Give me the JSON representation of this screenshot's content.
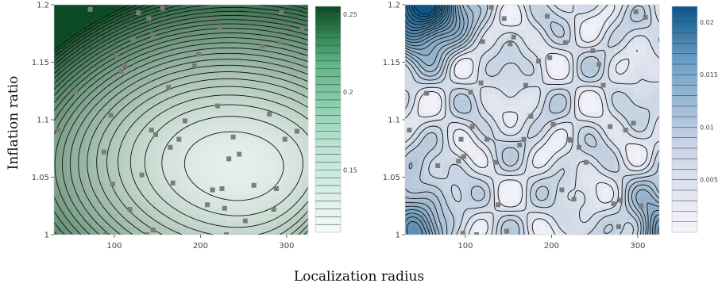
{
  "figure": {
    "xlabel": "Localization radius",
    "ylabel": "Inflation ratio"
  },
  "chart_data": [
    {
      "type": "heatmap",
      "subtype": "contour",
      "title": "",
      "xlabel": "Localization radius",
      "ylabel": "Inflation ratio",
      "xlim": [
        30,
        325
      ],
      "ylim": [
        1.0,
        1.2
      ],
      "xticks": [
        100,
        200,
        300
      ],
      "yticks": [
        1.0,
        1.05,
        1.1,
        1.15,
        1.2
      ],
      "xtick_labels": [
        "100",
        "200",
        "300"
      ],
      "ytick_labels": [
        "1",
        "1.05",
        "1.1",
        "1.15",
        "1.2"
      ],
      "colorscale": "greens",
      "color_low": "#f3faf8",
      "color_high": "#0b4a22",
      "colorbar": {
        "range": [
          0.11,
          0.255
        ],
        "ticks": [
          0.15,
          0.2,
          0.25
        ],
        "tick_labels": [
          "0.15",
          "0.2",
          "0.25"
        ],
        "levels": [
          0.115,
          0.12,
          0.125,
          0.13,
          0.135,
          0.14,
          0.145,
          0.15,
          0.155,
          0.16,
          0.165,
          0.17,
          0.175,
          0.18,
          0.185,
          0.19,
          0.195,
          0.2,
          0.205,
          0.21,
          0.215,
          0.22,
          0.225,
          0.23,
          0.235,
          0.24,
          0.245,
          0.25
        ]
      },
      "surface_description": "minimum near x=240, y=1.06; increases toward low radius and high inflation; maximum at top-left corner",
      "sample_points": [
        [
          35,
          1.091
        ],
        [
          55,
          1.124
        ],
        [
          72,
          1.196
        ],
        [
          88,
          1.072
        ],
        [
          90,
          1.0
        ],
        [
          96,
          1.104
        ],
        [
          98,
          1.044
        ],
        [
          102,
          1.156
        ],
        [
          108,
          1.142
        ],
        [
          112,
          1.147
        ],
        [
          118,
          1.022
        ],
        [
          122,
          1.169
        ],
        [
          128,
          1.193
        ],
        [
          132,
          1.052
        ],
        [
          138,
          1.0
        ],
        [
          140,
          1.188
        ],
        [
          143,
          1.091
        ],
        [
          145,
          1.174
        ],
        [
          145,
          1.004
        ],
        [
          148,
          1.087
        ],
        [
          156,
          1.197
        ],
        [
          163,
          1.128
        ],
        [
          165,
          1.076
        ],
        [
          168,
          1.045
        ],
        [
          175,
          1.083
        ],
        [
          182,
          1.099
        ],
        [
          193,
          1.147
        ],
        [
          198,
          1.157
        ],
        [
          208,
          1.026
        ],
        [
          214,
          1.039
        ],
        [
          220,
          1.112
        ],
        [
          222,
          1.181
        ],
        [
          225,
          1.04
        ],
        [
          228,
          1.023
        ],
        [
          230,
          1.0
        ],
        [
          233,
          1.066
        ],
        [
          238,
          1.085
        ],
        [
          245,
          1.07
        ],
        [
          252,
          1.012
        ],
        [
          262,
          1.043
        ],
        [
          272,
          1.164
        ],
        [
          280,
          1.105
        ],
        [
          285,
          1.022
        ],
        [
          288,
          1.04
        ],
        [
          292,
          1.167
        ],
        [
          294,
          1.193
        ],
        [
          298,
          1.083
        ],
        [
          312,
          1.09
        ],
        [
          318,
          1.179
        ]
      ]
    },
    {
      "type": "heatmap",
      "subtype": "contour",
      "title": "",
      "xlabel": "Localization radius",
      "ylabel": "Inflation ratio",
      "xlim": [
        30,
        325
      ],
      "ylim": [
        1.0,
        1.2
      ],
      "xticks": [
        100,
        200,
        300
      ],
      "yticks": [
        1.0,
        1.05,
        1.1,
        1.15,
        1.2
      ],
      "xtick_labels": [
        "100",
        "200",
        "300"
      ],
      "ytick_labels": [
        "1",
        "1.05",
        "1.1",
        "1.15",
        "1.2"
      ],
      "colorscale": "blues",
      "color_low": "#f7f4fa",
      "color_high": "#0a5587",
      "colorbar": {
        "range": [
          0.0,
          0.0215
        ],
        "ticks": [
          0.005,
          0.01,
          0.015,
          0.02
        ],
        "tick_labels": [
          "0.005",
          "0.01",
          "0.015",
          "0.02"
        ],
        "levels": [
          0.001,
          0.002,
          0.003,
          0.004,
          0.005,
          0.006,
          0.007,
          0.008,
          0.009,
          0.01,
          0.011,
          0.012,
          0.013,
          0.014,
          0.015,
          0.016,
          0.017,
          0.018,
          0.019,
          0.02,
          0.021
        ]
      },
      "surface_description": "mostly near zero with many small local extrema; high values in top-left corner, bottom-left corner and bottom-right corner",
      "sample_points": [
        [
          35,
          1.091
        ],
        [
          55,
          1.123
        ],
        [
          68,
          1.06
        ],
        [
          92,
          1.064
        ],
        [
          95,
          1.083
        ],
        [
          97,
          1.001
        ],
        [
          98,
          1.068
        ],
        [
          106,
          1.124
        ],
        [
          108,
          1.094
        ],
        [
          113,
          1.0
        ],
        [
          118,
          1.132
        ],
        [
          120,
          1.168
        ],
        [
          125,
          1.083
        ],
        [
          130,
          1.198
        ],
        [
          135,
          1.063
        ],
        [
          138,
          1.026
        ],
        [
          145,
          1.188
        ],
        [
          148,
          1.003
        ],
        [
          152,
          1.166
        ],
        [
          156,
          1.172
        ],
        [
          163,
          1.078
        ],
        [
          168,
          1.083
        ],
        [
          170,
          1.13
        ],
        [
          176,
          1.103
        ],
        [
          185,
          1.151
        ],
        [
          195,
          1.19
        ],
        [
          198,
          1.154
        ],
        [
          202,
          1.096
        ],
        [
          212,
          1.039
        ],
        [
          216,
          1.167
        ],
        [
          220,
          1.083
        ],
        [
          222,
          1.082
        ],
        [
          226,
          1.031
        ],
        [
          232,
          1.076
        ],
        [
          240,
          1.063
        ],
        [
          248,
          1.16
        ],
        [
          255,
          1.148
        ],
        [
          260,
          1.13
        ],
        [
          268,
          1.094
        ],
        [
          272,
          1.027
        ],
        [
          278,
          1.007
        ],
        [
          280,
          1.03
        ],
        [
          286,
          1.091
        ],
        [
          295,
          1.097
        ],
        [
          298,
          1.194
        ],
        [
          304,
          1.025
        ],
        [
          309,
          1.189
        ]
      ]
    }
  ]
}
